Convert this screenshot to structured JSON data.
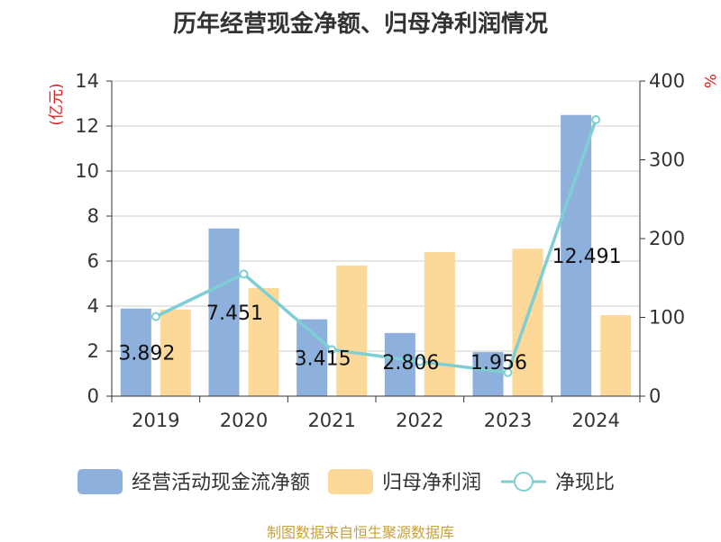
{
  "chart_data": {
    "type": "bar",
    "title": "历年经营现金净额、归母净利润情况",
    "categories": [
      "2019",
      "2020",
      "2021",
      "2022",
      "2023",
      "2024"
    ],
    "y_left": {
      "label": "(亿元)",
      "range": [
        0,
        14
      ],
      "ticks": [
        0,
        2,
        4,
        6,
        8,
        10,
        12,
        14
      ]
    },
    "y_right": {
      "label": "%",
      "range": [
        0,
        400
      ],
      "ticks": [
        0,
        100,
        200,
        300,
        400
      ]
    },
    "grid": true,
    "legend_position": "bottom",
    "series": [
      {
        "name": "经营活动现金流净额",
        "type": "bar",
        "axis": "left",
        "color": "#8eb0dc",
        "values": [
          3.892,
          7.451,
          3.415,
          2.806,
          1.956,
          12.491
        ],
        "labels": [
          "3.892",
          "7.451",
          "3.415",
          "2.806",
          "1.956",
          "12.491"
        ]
      },
      {
        "name": "归母净利润",
        "type": "bar",
        "axis": "left",
        "color": "#fdd999",
        "values": [
          3.85,
          4.8,
          5.8,
          6.4,
          6.55,
          3.6
        ]
      },
      {
        "name": "净现比",
        "type": "line",
        "axis": "right",
        "color": "#7dcfd4",
        "values": [
          101,
          155,
          59,
          44,
          30,
          351
        ]
      }
    ]
  },
  "source": "制图数据来自恒生聚源数据库"
}
